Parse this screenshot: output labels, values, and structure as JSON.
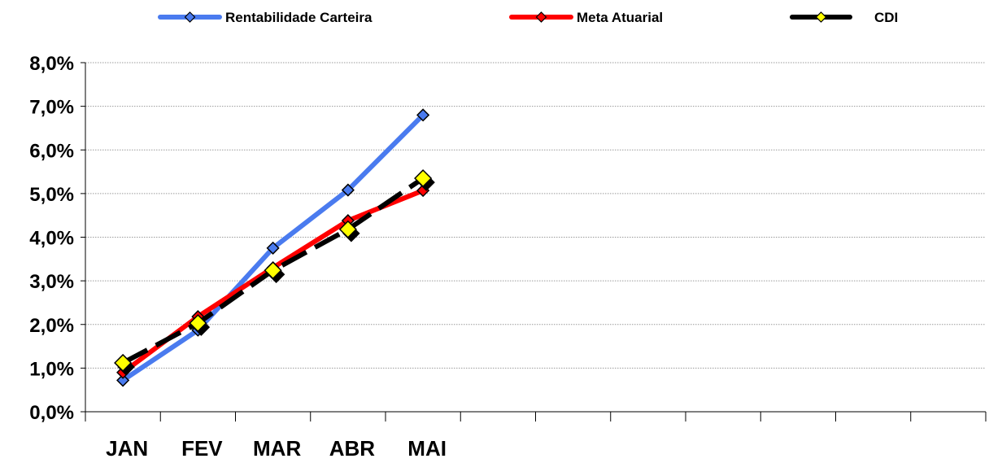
{
  "chart_data": {
    "type": "line",
    "categories": [
      "JAN",
      "FEV",
      "MAR",
      "ABR",
      "MAI"
    ],
    "x_slots": 12,
    "ylim": [
      0,
      8
    ],
    "yticks": [
      0,
      1,
      2,
      3,
      4,
      5,
      6,
      7,
      8
    ],
    "ytick_labels": [
      "0,0%",
      "1,0%",
      "2,0%",
      "3,0%",
      "4,0%",
      "5,0%",
      "6,0%",
      "7,0%",
      "8,0%"
    ],
    "grid": "horizontal",
    "legend": "top",
    "series": [
      {
        "name": "Rentabilidade Carteira",
        "values": [
          0.72,
          1.87,
          3.75,
          5.08,
          6.8
        ],
        "color": "#4A7BEF",
        "marker_color": "#4A7BEF",
        "line_style": "solid"
      },
      {
        "name": "Meta Atuarial",
        "values": [
          0.9,
          2.18,
          3.3,
          4.38,
          5.07
        ],
        "color": "#FF0000",
        "marker_color": "#FF0000",
        "line_style": "solid"
      },
      {
        "name": "CDI",
        "values": [
          1.12,
          2.03,
          3.24,
          4.18,
          5.35
        ],
        "color": "#000000",
        "marker_color": "#FFFF00",
        "line_style": "dashed"
      }
    ]
  }
}
